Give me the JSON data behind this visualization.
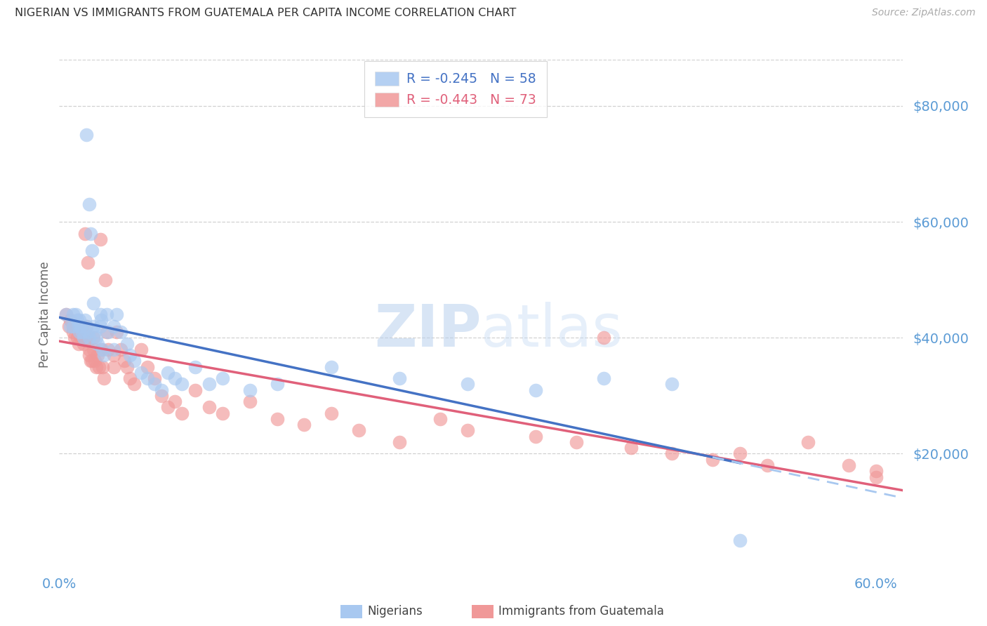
{
  "title": "NIGERIAN VS IMMIGRANTS FROM GUATEMALA PER CAPITA INCOME CORRELATION CHART",
  "source": "Source: ZipAtlas.com",
  "ylabel": "Per Capita Income",
  "yticks": [
    20000,
    40000,
    60000,
    80000
  ],
  "ytick_labels": [
    "$20,000",
    "$40,000",
    "$60,000",
    "$80,000"
  ],
  "ylim": [
    0,
    88000
  ],
  "xlim": [
    0.0,
    0.62
  ],
  "blue_color": "#a8c8f0",
  "pink_color": "#f09898",
  "line_blue": "#4472c4",
  "line_pink": "#e0607a",
  "line_blue_dashed_color": "#a8c8f0",
  "axis_label_color": "#5b9bd5",
  "grid_color": "#cccccc",
  "R_nig": -0.245,
  "N_nig": 58,
  "R_guat": -0.443,
  "N_guat": 73,
  "nig_x": [
    0.005,
    0.008,
    0.01,
    0.01,
    0.012,
    0.013,
    0.014,
    0.015,
    0.015,
    0.016,
    0.017,
    0.018,
    0.019,
    0.02,
    0.02,
    0.021,
    0.022,
    0.022,
    0.023,
    0.024,
    0.025,
    0.025,
    0.026,
    0.027,
    0.028,
    0.03,
    0.03,
    0.031,
    0.032,
    0.033,
    0.035,
    0.036,
    0.04,
    0.04,
    0.042,
    0.045,
    0.05,
    0.052,
    0.055,
    0.06,
    0.065,
    0.07,
    0.075,
    0.08,
    0.085,
    0.09,
    0.1,
    0.11,
    0.12,
    0.14,
    0.16,
    0.2,
    0.25,
    0.3,
    0.35,
    0.4,
    0.45,
    0.5
  ],
  "nig_y": [
    44000,
    42000,
    44000,
    42000,
    44000,
    43000,
    42000,
    43000,
    41000,
    42000,
    41000,
    40000,
    43000,
    75000,
    42000,
    41000,
    40000,
    63000,
    58000,
    55000,
    46000,
    42000,
    41000,
    40000,
    39000,
    44000,
    42000,
    43000,
    38000,
    37000,
    44000,
    41000,
    42000,
    38000,
    44000,
    41000,
    39000,
    37000,
    36000,
    34000,
    33000,
    32000,
    31000,
    34000,
    33000,
    32000,
    35000,
    32000,
    33000,
    31000,
    32000,
    35000,
    33000,
    32000,
    31000,
    33000,
    32000,
    5000
  ],
  "guat_x": [
    0.005,
    0.007,
    0.008,
    0.01,
    0.01,
    0.011,
    0.012,
    0.013,
    0.014,
    0.015,
    0.015,
    0.016,
    0.017,
    0.018,
    0.019,
    0.02,
    0.02,
    0.021,
    0.022,
    0.022,
    0.023,
    0.024,
    0.025,
    0.025,
    0.026,
    0.027,
    0.028,
    0.029,
    0.03,
    0.031,
    0.032,
    0.033,
    0.034,
    0.035,
    0.036,
    0.04,
    0.04,
    0.042,
    0.045,
    0.048,
    0.05,
    0.052,
    0.055,
    0.06,
    0.065,
    0.07,
    0.075,
    0.08,
    0.085,
    0.09,
    0.1,
    0.11,
    0.12,
    0.14,
    0.16,
    0.18,
    0.2,
    0.22,
    0.25,
    0.28,
    0.3,
    0.35,
    0.38,
    0.4,
    0.42,
    0.45,
    0.48,
    0.5,
    0.52,
    0.55,
    0.58,
    0.6,
    0.6
  ],
  "guat_y": [
    44000,
    42000,
    43000,
    42000,
    41000,
    40000,
    42000,
    40000,
    39000,
    42000,
    41000,
    40000,
    42000,
    39000,
    58000,
    42000,
    40000,
    53000,
    38000,
    37000,
    36000,
    36000,
    40000,
    38000,
    36000,
    35000,
    37000,
    35000,
    57000,
    38000,
    35000,
    33000,
    50000,
    41000,
    38000,
    37000,
    35000,
    41000,
    38000,
    36000,
    35000,
    33000,
    32000,
    38000,
    35000,
    33000,
    30000,
    28000,
    29000,
    27000,
    31000,
    28000,
    27000,
    29000,
    26000,
    25000,
    27000,
    24000,
    22000,
    26000,
    24000,
    23000,
    22000,
    40000,
    21000,
    20000,
    19000,
    20000,
    18000,
    22000,
    18000,
    17000,
    16000
  ],
  "watermark_zip": "ZIP",
  "watermark_atlas": "atlas",
  "watermark_color": "#c8ddf5"
}
